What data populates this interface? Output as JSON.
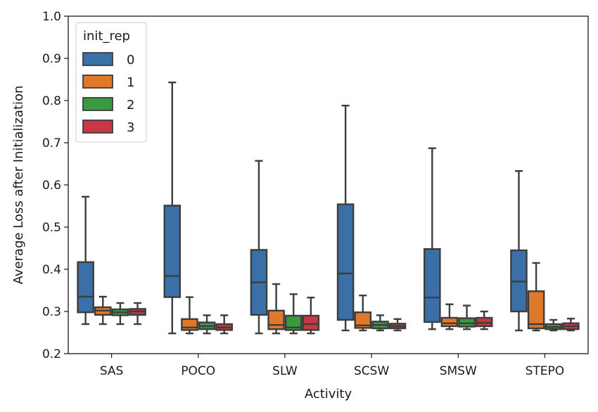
{
  "chart_data": {
    "type": "boxplot",
    "xlabel": "Activity",
    "ylabel": "Average Loss after Initialization",
    "ylim": [
      0.2,
      1.0
    ],
    "yticks": [
      0.2,
      0.3,
      0.4,
      0.5,
      0.6,
      0.7,
      0.8,
      0.9,
      1.0
    ],
    "categories": [
      "SAS",
      "POCO",
      "SLW",
      "SCSW",
      "SMSW",
      "STEPO"
    ],
    "legend": {
      "title": "init_rep",
      "placement": "top-left"
    },
    "series": [
      {
        "name": "0",
        "color": "#3a6fa7",
        "boxes": [
          {
            "min": 0.27,
            "q1": 0.298,
            "median": 0.335,
            "q3": 0.417,
            "max": 0.572
          },
          {
            "min": 0.248,
            "q1": 0.334,
            "median": 0.384,
            "q3": 0.551,
            "max": 0.843
          },
          {
            "min": 0.248,
            "q1": 0.292,
            "median": 0.369,
            "q3": 0.446,
            "max": 0.657
          },
          {
            "min": 0.255,
            "q1": 0.28,
            "median": 0.39,
            "q3": 0.554,
            "max": 0.788
          },
          {
            "min": 0.258,
            "q1": 0.275,
            "median": 0.333,
            "q3": 0.448,
            "max": 0.687
          },
          {
            "min": 0.255,
            "q1": 0.3,
            "median": 0.371,
            "q3": 0.445,
            "max": 0.633
          }
        ]
      },
      {
        "name": "1",
        "color": "#e0782a",
        "boxes": [
          {
            "min": 0.27,
            "q1": 0.292,
            "median": 0.302,
            "q3": 0.31,
            "max": 0.335
          },
          {
            "min": 0.248,
            "q1": 0.256,
            "median": 0.262,
            "q3": 0.282,
            "max": 0.334
          },
          {
            "min": 0.248,
            "q1": 0.258,
            "median": 0.268,
            "q3": 0.302,
            "max": 0.365
          },
          {
            "min": 0.255,
            "q1": 0.261,
            "median": 0.267,
            "q3": 0.298,
            "max": 0.338
          },
          {
            "min": 0.258,
            "q1": 0.265,
            "median": 0.272,
            "q3": 0.285,
            "max": 0.317
          },
          {
            "min": 0.255,
            "q1": 0.26,
            "median": 0.27,
            "q3": 0.348,
            "max": 0.415
          }
        ]
      },
      {
        "name": "2",
        "color": "#3a9a3f",
        "boxes": [
          {
            "min": 0.27,
            "q1": 0.291,
            "median": 0.298,
            "q3": 0.305,
            "max": 0.32
          },
          {
            "min": 0.248,
            "q1": 0.258,
            "median": 0.265,
            "q3": 0.274,
            "max": 0.291
          },
          {
            "min": 0.248,
            "q1": 0.256,
            "median": 0.262,
            "q3": 0.29,
            "max": 0.341
          },
          {
            "min": 0.255,
            "q1": 0.26,
            "median": 0.268,
            "q3": 0.276,
            "max": 0.291
          },
          {
            "min": 0.258,
            "q1": 0.264,
            "median": 0.272,
            "q3": 0.284,
            "max": 0.314
          },
          {
            "min": 0.255,
            "q1": 0.258,
            "median": 0.263,
            "q3": 0.27,
            "max": 0.28
          }
        ]
      },
      {
        "name": "3",
        "color": "#c93644",
        "boxes": [
          {
            "min": 0.27,
            "q1": 0.292,
            "median": 0.3,
            "q3": 0.306,
            "max": 0.32
          },
          {
            "min": 0.248,
            "q1": 0.256,
            "median": 0.262,
            "q3": 0.27,
            "max": 0.291
          },
          {
            "min": 0.248,
            "q1": 0.256,
            "median": 0.27,
            "q3": 0.29,
            "max": 0.333
          },
          {
            "min": 0.255,
            "q1": 0.26,
            "median": 0.265,
            "q3": 0.271,
            "max": 0.282
          },
          {
            "min": 0.258,
            "q1": 0.265,
            "median": 0.273,
            "q3": 0.285,
            "max": 0.3
          },
          {
            "min": 0.255,
            "q1": 0.258,
            "median": 0.265,
            "q3": 0.272,
            "max": 0.283
          }
        ]
      }
    ]
  }
}
